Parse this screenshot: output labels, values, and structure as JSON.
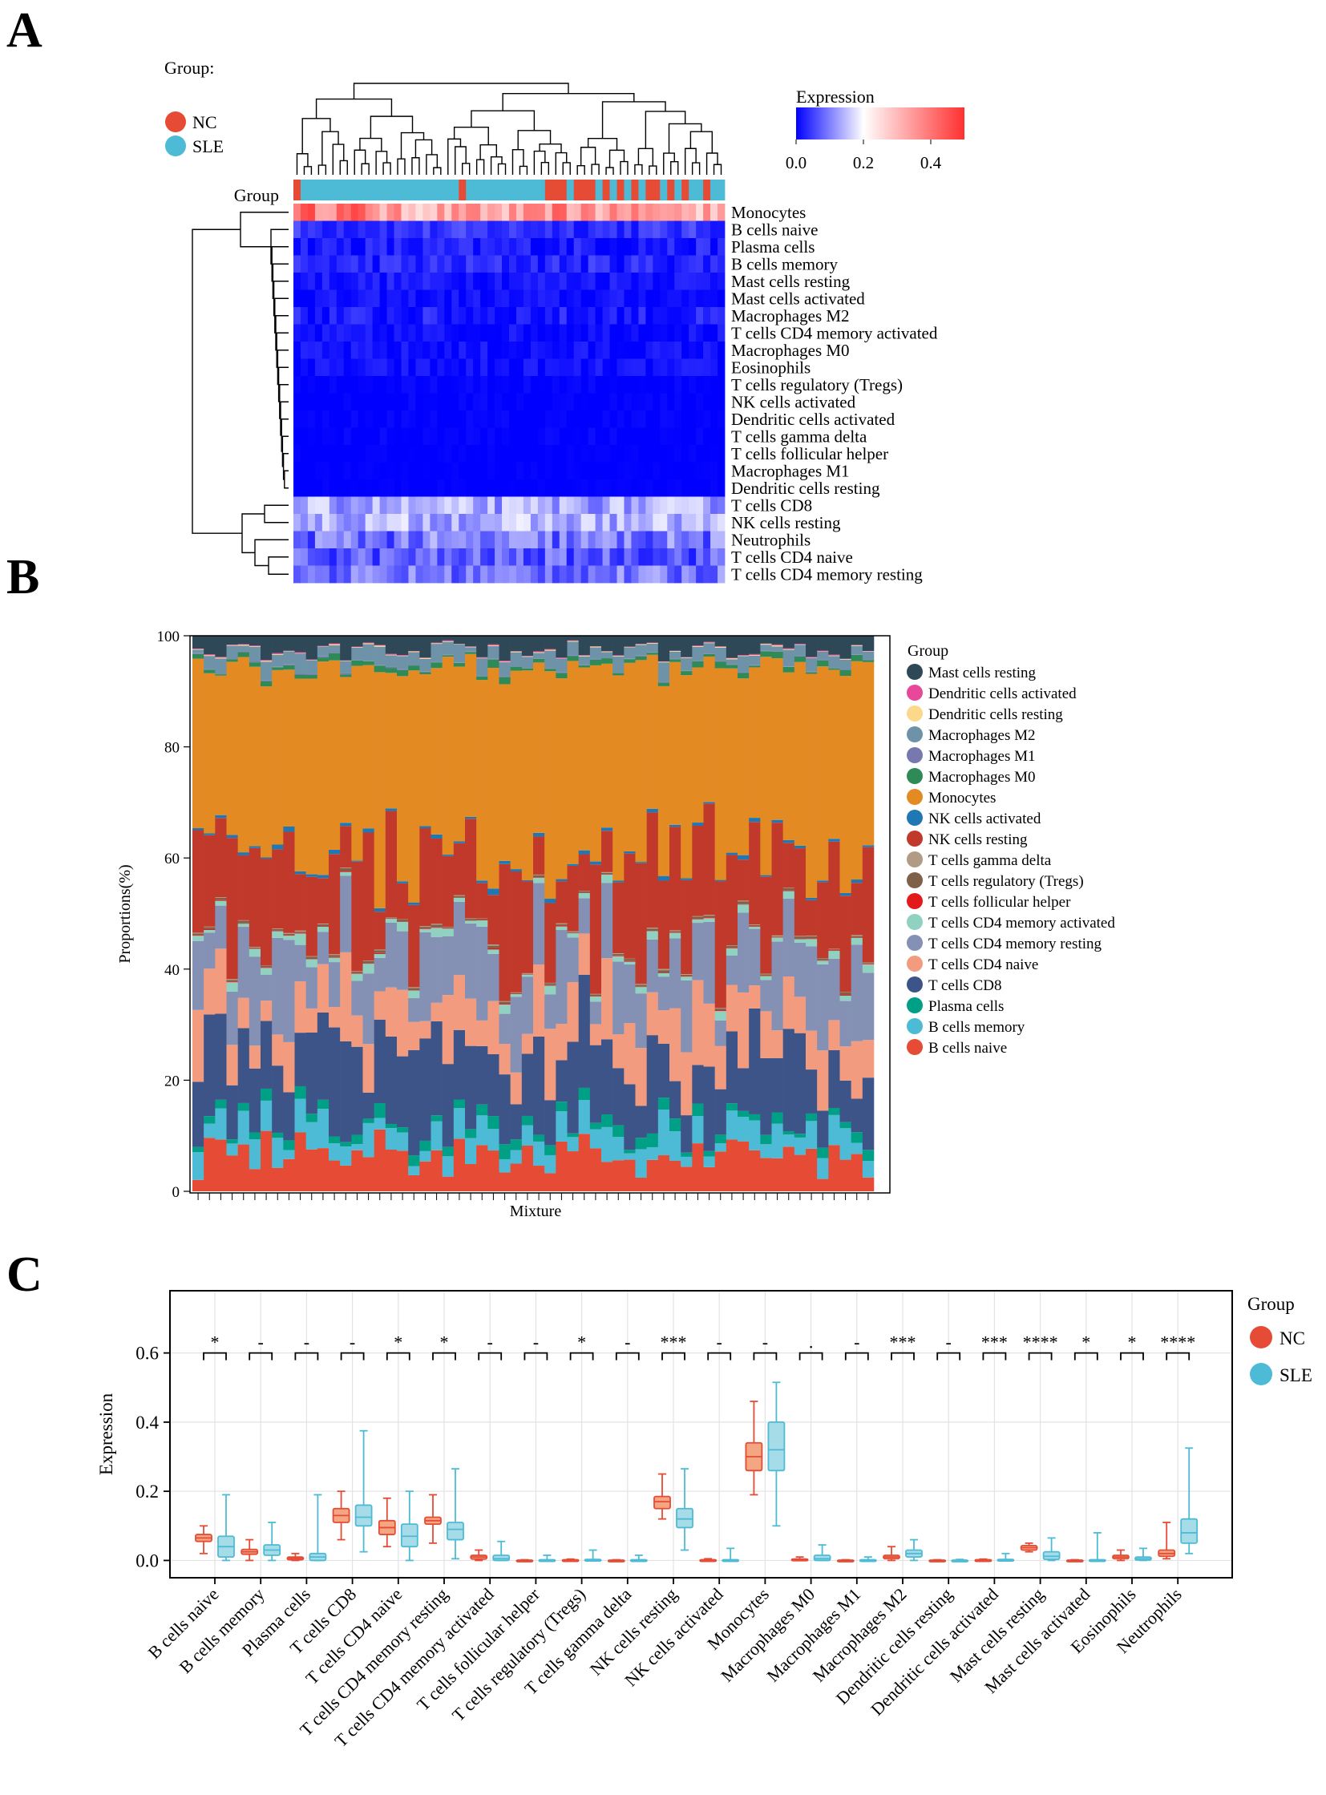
{
  "panel_labels": {
    "a": "A",
    "b": "B",
    "c": "C"
  },
  "colors": {
    "nc": "#E64B35",
    "sle": "#4DBBD5",
    "expr_low": "#0000FF",
    "expr_mid": "#FFFFFF",
    "expr_high": "#FF3030",
    "box_nc_fill": "#F4A582",
    "box_sle_fill": "#A6DBE8"
  },
  "chart_data": [
    {
      "type": "heatmap",
      "panel": "A",
      "group_legend": {
        "title": "Group:",
        "nc": "NC",
        "sle": "SLE"
      },
      "group_row_label": "Group",
      "colorbar": {
        "title": "Expression",
        "ticks": [
          "0.0",
          "0.2",
          "0.4"
        ],
        "range": [
          0,
          0.5
        ]
      },
      "n_samples": 60,
      "nc_columns": [
        0,
        23,
        35,
        36,
        37,
        39,
        40,
        41,
        43,
        45,
        47,
        49,
        50,
        52,
        54,
        57
      ],
      "rows": [
        {
          "name": "Monocytes",
          "mean": 0.32,
          "spread": 0.08
        },
        {
          "name": "B cells naive",
          "mean": 0.04,
          "spread": 0.03
        },
        {
          "name": "Plasma cells",
          "mean": 0.02,
          "spread": 0.03
        },
        {
          "name": "B cells memory",
          "mean": 0.03,
          "spread": 0.03
        },
        {
          "name": "Mast cells resting",
          "mean": 0.02,
          "spread": 0.02
        },
        {
          "name": "Mast cells activated",
          "mean": 0.01,
          "spread": 0.02
        },
        {
          "name": "Macrophages M2",
          "mean": 0.02,
          "spread": 0.03
        },
        {
          "name": "T cells CD4 memory activated",
          "mean": 0.01,
          "spread": 0.02
        },
        {
          "name": "Macrophages M0",
          "mean": 0.01,
          "spread": 0.02
        },
        {
          "name": "Eosinophils",
          "mean": 0.01,
          "spread": 0.02
        },
        {
          "name": "T cells regulatory (Tregs)",
          "mean": 0.0,
          "spread": 0.01
        },
        {
          "name": "NK cells activated",
          "mean": 0.0,
          "spread": 0.01
        },
        {
          "name": "Dendritic cells activated",
          "mean": 0.0,
          "spread": 0.01
        },
        {
          "name": "T cells gamma delta",
          "mean": 0.0,
          "spread": 0.01
        },
        {
          "name": "T cells follicular helper",
          "mean": 0.0,
          "spread": 0.005
        },
        {
          "name": "Macrophages M1",
          "mean": 0.0,
          "spread": 0.005
        },
        {
          "name": "Dendritic cells resting",
          "mean": 0.0,
          "spread": 0.005
        },
        {
          "name": "T cells CD8",
          "mean": 0.13,
          "spread": 0.05
        },
        {
          "name": "NK cells resting",
          "mean": 0.14,
          "spread": 0.05
        },
        {
          "name": "Neutrophils",
          "mean": 0.09,
          "spread": 0.06
        },
        {
          "name": "T cells CD4 naive",
          "mean": 0.07,
          "spread": 0.05
        },
        {
          "name": "T cells CD4 memory resting",
          "mean": 0.09,
          "spread": 0.05
        }
      ]
    },
    {
      "type": "bar",
      "stacked": true,
      "panel": "B",
      "xlabel": "Mixture",
      "ylabel": "Proportions(%)",
      "ylim": [
        0,
        100
      ],
      "yticks": [
        "0",
        "20",
        "40",
        "60",
        "80",
        "100"
      ],
      "legend_title": "Group",
      "n_samples": 60,
      "legend": [
        {
          "name": "Mast cells resting",
          "color": "#2F4858"
        },
        {
          "name": "Dendritic cells activated",
          "color": "#E7489A"
        },
        {
          "name": "Dendritic cells resting",
          "color": "#FCD88A"
        },
        {
          "name": "Macrophages M2",
          "color": "#6E93A8"
        },
        {
          "name": "Macrophages M1",
          "color": "#7778AE"
        },
        {
          "name": "Macrophages M0",
          "color": "#2E8B57"
        },
        {
          "name": "Monocytes",
          "color": "#E38A23"
        },
        {
          "name": "NK cells activated",
          "color": "#1F78B4"
        },
        {
          "name": "NK cells resting",
          "color": "#C0392B"
        },
        {
          "name": "T cells gamma delta",
          "color": "#B09C85"
        },
        {
          "name": "T cells regulatory (Tregs)",
          "color": "#7E6148"
        },
        {
          "name": "T cells follicular helper",
          "color": "#E31A1C"
        },
        {
          "name": "T cells CD4 memory activated",
          "color": "#91D1C2"
        },
        {
          "name": "T cells CD4 memory resting",
          "color": "#8491B4"
        },
        {
          "name": "T cells CD4 naive",
          "color": "#F39B7F"
        },
        {
          "name": "T cells CD8",
          "color": "#3C5488"
        },
        {
          "name": "Plasma cells",
          "color": "#00A087"
        },
        {
          "name": "B cells memory",
          "color": "#4DBBD5"
        },
        {
          "name": "B cells naive",
          "color": "#E64B35"
        }
      ],
      "stack_order": [
        "B cells naive",
        "B cells memory",
        "Plasma cells",
        "T cells CD8",
        "T cells CD4 naive",
        "T cells CD4 memory resting",
        "T cells CD4 memory activated",
        "T cells follicular helper",
        "T cells regulatory (Tregs)",
        "T cells gamma delta",
        "NK cells resting",
        "NK cells activated",
        "Monocytes",
        "Macrophages M0",
        "Macrophages M1",
        "Macrophages M2",
        "Dendritic cells resting",
        "Dendritic cells activated",
        "Mast cells resting"
      ],
      "mean_percent": [
        6.0,
        3.5,
        1.5,
        12.0,
        9.0,
        10.0,
        1.0,
        0.1,
        0.3,
        0.1,
        15.0,
        0.5,
        32.0,
        0.7,
        0.1,
        2.0,
        0.1,
        0.1,
        2.5
      ]
    },
    {
      "type": "box",
      "panel": "C",
      "ylabel": "Expression",
      "ylim": [
        -0.05,
        0.78
      ],
      "yticks": [
        0.0,
        0.2,
        0.4,
        0.6
      ],
      "ytick_labels": [
        "0.0",
        "0.2",
        "0.4",
        "0.6"
      ],
      "legend_title": "Group",
      "groups": [
        "NC",
        "SLE"
      ],
      "categories": [
        "B cells naive",
        "B cells memory",
        "Plasma cells",
        "T cells CD8",
        "T cells CD4 naive",
        "T cells CD4 memory resting",
        "T cells CD4 memory activated",
        "T cells follicular helper",
        "T cells regulatory (Tregs)",
        "T cells gamma delta",
        "NK cells resting",
        "NK cells activated",
        "Monocytes",
        "Macrophages M0",
        "Macrophages M1",
        "Macrophages M2",
        "Dendritic cells resting",
        "Dendritic cells activated",
        "Mast cells resting",
        "Mast cells activated",
        "Eosinophils",
        "Neutrophils"
      ],
      "significance": [
        "*",
        "-",
        "-",
        "-",
        "*",
        "*",
        "-",
        "-",
        "*",
        "-",
        "***",
        "-",
        "-",
        ".",
        "-",
        "***",
        "-",
        "***",
        "****",
        "*",
        "*",
        "****"
      ],
      "nc": [
        [
          0.02,
          0.055,
          0.065,
          0.075,
          0.1
        ],
        [
          0.0,
          0.018,
          0.025,
          0.032,
          0.06
        ],
        [
          0.0,
          0.002,
          0.006,
          0.01,
          0.02
        ],
        [
          0.06,
          0.11,
          0.13,
          0.15,
          0.2
        ],
        [
          0.04,
          0.075,
          0.095,
          0.115,
          0.18
        ],
        [
          0.05,
          0.105,
          0.115,
          0.125,
          0.19
        ],
        [
          0.0,
          0.004,
          0.01,
          0.015,
          0.03
        ],
        [
          0.0,
          0.0,
          0.0,
          0.001,
          0.002
        ],
        [
          0.0,
          0.0,
          0.001,
          0.002,
          0.004
        ],
        [
          0.0,
          0.0,
          0.0,
          0.001,
          0.002
        ],
        [
          0.12,
          0.15,
          0.17,
          0.185,
          0.25
        ],
        [
          0.0,
          0.0,
          0.001,
          0.002,
          0.005
        ],
        [
          0.19,
          0.26,
          0.3,
          0.34,
          0.46
        ],
        [
          0.0,
          0.0,
          0.002,
          0.004,
          0.01
        ],
        [
          0.0,
          0.0,
          0.0,
          0.001,
          0.002
        ],
        [
          0.0,
          0.005,
          0.01,
          0.015,
          0.04
        ],
        [
          0.0,
          0.0,
          0.0,
          0.001,
          0.002
        ],
        [
          0.0,
          0.0,
          0.001,
          0.002,
          0.004
        ],
        [
          0.025,
          0.03,
          0.037,
          0.043,
          0.05
        ],
        [
          0.0,
          0.0,
          0.0,
          0.001,
          0.002
        ],
        [
          0.0,
          0.005,
          0.01,
          0.015,
          0.03
        ],
        [
          0.005,
          0.012,
          0.02,
          0.03,
          0.11
        ]
      ],
      "sle": [
        [
          0.0,
          0.01,
          0.04,
          0.07,
          0.19
        ],
        [
          0.0,
          0.015,
          0.03,
          0.045,
          0.11
        ],
        [
          0.0,
          0.0,
          0.01,
          0.02,
          0.19
        ],
        [
          0.025,
          0.1,
          0.125,
          0.16,
          0.375
        ],
        [
          0.0,
          0.04,
          0.07,
          0.105,
          0.2
        ],
        [
          0.005,
          0.06,
          0.09,
          0.11,
          0.265
        ],
        [
          0.0,
          0.0,
          0.005,
          0.015,
          0.055
        ],
        [
          0.0,
          0.0,
          0.0,
          0.002,
          0.015
        ],
        [
          0.0,
          0.0,
          0.0,
          0.003,
          0.03
        ],
        [
          0.0,
          0.0,
          0.0,
          0.002,
          0.015
        ],
        [
          0.03,
          0.095,
          0.12,
          0.15,
          0.265
        ],
        [
          0.0,
          0.0,
          0.0,
          0.002,
          0.035
        ],
        [
          0.1,
          0.26,
          0.32,
          0.4,
          0.515
        ],
        [
          0.0,
          0.0,
          0.005,
          0.015,
          0.045
        ],
        [
          0.0,
          0.0,
          0.0,
          0.002,
          0.01
        ],
        [
          0.0,
          0.01,
          0.02,
          0.03,
          0.06
        ],
        [
          0.0,
          0.0,
          0.0,
          0.001,
          0.003
        ],
        [
          0.0,
          0.0,
          0.0,
          0.003,
          0.02
        ],
        [
          0.0,
          0.003,
          0.012,
          0.025,
          0.065
        ],
        [
          0.0,
          0.0,
          0.0,
          0.002,
          0.08
        ],
        [
          0.0,
          0.001,
          0.005,
          0.01,
          0.035
        ],
        [
          0.02,
          0.05,
          0.08,
          0.12,
          0.325
        ]
      ]
    }
  ]
}
